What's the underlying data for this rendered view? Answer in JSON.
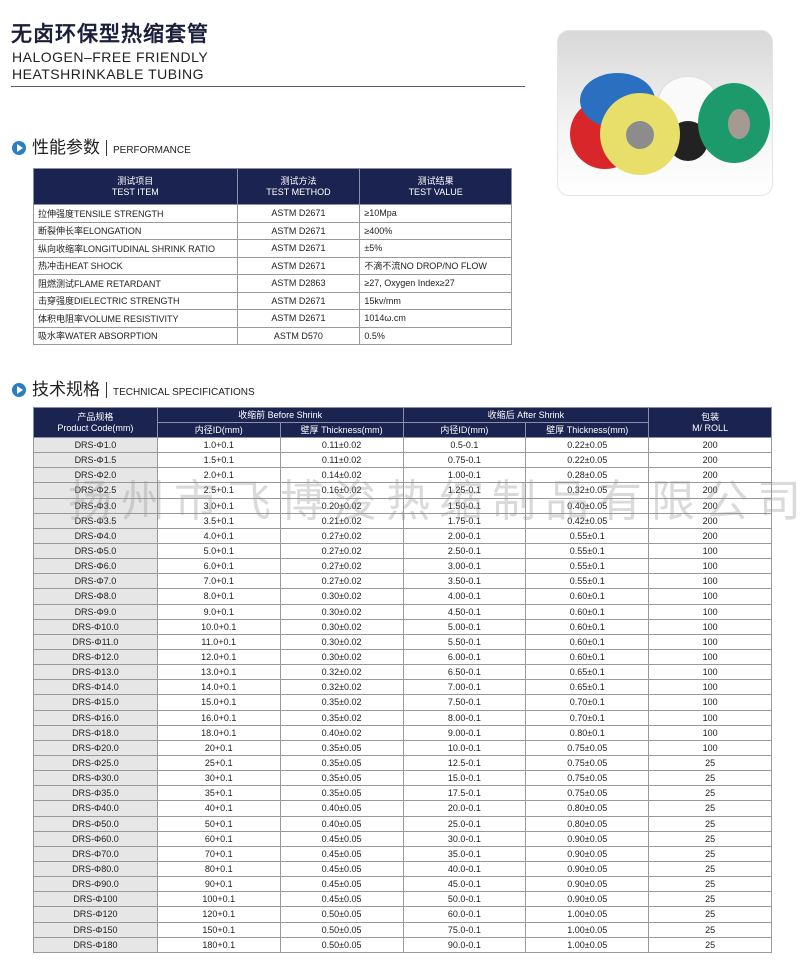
{
  "header": {
    "title_cn": "无卤环保型热缩套管",
    "title_en_1": "HALOGEN–FREE FRIENDLY",
    "title_en_2": "HEATSHRINKABLE TUBING"
  },
  "watermark": "扬州市飞博浚热缩制品有限公司",
  "performance": {
    "heading_cn": "性能参数",
    "heading_en": "PERFORMANCE",
    "columns": [
      {
        "cn": "测试项目",
        "en": "TEST ITEM"
      },
      {
        "cn": "测试方法",
        "en": "TEST METHOD"
      },
      {
        "cn": "测试结果",
        "en": "TEST VALUE"
      }
    ],
    "rows": [
      [
        "拉伸强度TENSILE STRENGTH",
        "ASTM D2671",
        "≥10Mpa"
      ],
      [
        "断裂伸长率ELONGATION",
        "ASTM D2671",
        "≥400%"
      ],
      [
        "纵向收缩率LONGITUDINAL SHRINK RATIO",
        "ASTM D2671",
        "±5%"
      ],
      [
        "热冲击HEAT SHOCK",
        "ASTM D2671",
        "不滴不流NO DROP/NO FLOW"
      ],
      [
        "阻燃测试FLAME RETARDANT",
        "ASTM D2863",
        "≥27, Oxygen Index≥27"
      ],
      [
        "击穿强度DIELECTRIC STRENGTH",
        "ASTM D2671",
        "15kv/mm"
      ],
      [
        "体积电阻率VOLUME RESISTIVITY",
        "ASTM D2671",
        "1014ω.cm"
      ],
      [
        "吸水率WATER ABSORPTION",
        "ASTM D570",
        "0.5%"
      ]
    ]
  },
  "specs": {
    "heading_cn": "技术规格",
    "heading_en": "TECHNICAL SPECIFICATIONS",
    "header": {
      "code_cn": "产品规格",
      "code_en": "Product Code(mm)",
      "before": "收缩前 Before Shrink",
      "after": "收缩后 After Shrink",
      "id": "内径ID(mm)",
      "thick": "壁厚 Thickness(mm)",
      "pack_cn": "包装",
      "pack_en": "M/ ROLL"
    },
    "rows": [
      [
        "DRS-Φ1.0",
        "1.0+0.1",
        "0.11±0.02",
        "0.5-0.1",
        "0.22±0.05",
        "200"
      ],
      [
        "DRS-Φ1.5",
        "1.5+0.1",
        "0.11±0.02",
        "0.75-0.1",
        "0.22±0.05",
        "200"
      ],
      [
        "DRS-Φ2.0",
        "2.0+0.1",
        "0.14±0.02",
        "1.00-0.1",
        "0.28±0.05",
        "200"
      ],
      [
        "DRS-Φ2.5",
        "2.5+0.1",
        "0.16±0.02",
        "1.25-0.1",
        "0.32±0.05",
        "200"
      ],
      [
        "DRS-Φ3.0",
        "3.0+0.1",
        "0.20±0.02",
        "1.50-0.1",
        "0.40±0.05",
        "200"
      ],
      [
        "DRS-Φ3.5",
        "3.5+0.1",
        "0.21±0.02",
        "1.75-0.1",
        "0.42±0.05",
        "200"
      ],
      [
        "DRS-Φ4.0",
        "4.0+0.1",
        "0.27±0.02",
        "2.00-0.1",
        "0.55±0.1",
        "200"
      ],
      [
        "DRS-Φ5.0",
        "5.0+0.1",
        "0.27±0.02",
        "2.50-0.1",
        "0.55±0.1",
        "100"
      ],
      [
        "DRS-Φ6.0",
        "6.0+0.1",
        "0.27±0.02",
        "3.00-0.1",
        "0.55±0.1",
        "100"
      ],
      [
        "DRS-Φ7.0",
        "7.0+0.1",
        "0.27±0.02",
        "3.50-0.1",
        "0.55±0.1",
        "100"
      ],
      [
        "DRS-Φ8.0",
        "8.0+0.1",
        "0.30±0.02",
        "4.00-0.1",
        "0.60±0.1",
        "100"
      ],
      [
        "DRS-Φ9.0",
        "9.0+0.1",
        "0.30±0.02",
        "4.50-0.1",
        "0.60±0.1",
        "100"
      ],
      [
        "DRS-Φ10.0",
        "10.0+0.1",
        "0.30±0.02",
        "5.00-0.1",
        "0.60±0.1",
        "100"
      ],
      [
        "DRS-Φ11.0",
        "11.0+0.1",
        "0.30±0.02",
        "5.50-0.1",
        "0.60±0.1",
        "100"
      ],
      [
        "DRS-Φ12.0",
        "12.0+0.1",
        "0.30±0.02",
        "6.00-0.1",
        "0.60±0.1",
        "100"
      ],
      [
        "DRS-Φ13.0",
        "13.0+0.1",
        "0.32±0.02",
        "6.50-0.1",
        "0.65±0.1",
        "100"
      ],
      [
        "DRS-Φ14.0",
        "14.0+0.1",
        "0.32±0.02",
        "7.00-0.1",
        "0.65±0.1",
        "100"
      ],
      [
        "DRS-Φ15.0",
        "15.0+0.1",
        "0.35±0.02",
        "7.50-0.1",
        "0.70±0.1",
        "100"
      ],
      [
        "DRS-Φ16.0",
        "16.0+0.1",
        "0.35±0.02",
        "8.00-0.1",
        "0.70±0.1",
        "100"
      ],
      [
        "DRS-Φ18.0",
        "18.0+0.1",
        "0.40±0.02",
        "9.00-0.1",
        "0.80±0.1",
        "100"
      ],
      [
        "DRS-Φ20.0",
        "20+0.1",
        "0.35±0.05",
        "10.0-0.1",
        "0.75±0.05",
        "100"
      ],
      [
        "DRS-Φ25.0",
        "25+0.1",
        "0.35±0.05",
        "12.5-0.1",
        "0.75±0.05",
        "25"
      ],
      [
        "DRS-Φ30.0",
        "30+0.1",
        "0.35±0.05",
        "15.0-0.1",
        "0.75±0.05",
        "25"
      ],
      [
        "DRS-Φ35.0",
        "35+0.1",
        "0.35±0.05",
        "17.5-0.1",
        "0.75±0.05",
        "25"
      ],
      [
        "DRS-Φ40.0",
        "40+0.1",
        "0.40±0.05",
        "20.0-0.1",
        "0.80±0.05",
        "25"
      ],
      [
        "DRS-Φ50.0",
        "50+0.1",
        "0.40±0.05",
        "25.0-0.1",
        "0.80±0.05",
        "25"
      ],
      [
        "DRS-Φ60.0",
        "60+0.1",
        "0.45±0.05",
        "30.0-0.1",
        "0.90±0.05",
        "25"
      ],
      [
        "DRS-Φ70.0",
        "70+0.1",
        "0.45±0.05",
        "35.0-0.1",
        "0.90±0.05",
        "25"
      ],
      [
        "DRS-Φ80.0",
        "80+0.1",
        "0.45±0.05",
        "40.0-0.1",
        "0.90±0.05",
        "25"
      ],
      [
        "DRS-Φ90.0",
        "90+0.1",
        "0.45±0.05",
        "45.0-0.1",
        "0.90±0.05",
        "25"
      ],
      [
        "DRS-Φ100",
        "100+0.1",
        "0.45±0.05",
        "50.0-0.1",
        "0.90±0.05",
        "25"
      ],
      [
        "DRS-Φ120",
        "120+0.1",
        "0.50±0.05",
        "60.0-0.1",
        "1.00±0.05",
        "25"
      ],
      [
        "DRS-Φ150",
        "150+0.1",
        "0.50±0.05",
        "75.0-0.1",
        "1.00±0.05",
        "25"
      ],
      [
        "DRS-Φ180",
        "180+0.1",
        "0.50±0.05",
        "90.0-0.1",
        "1.00±0.05",
        "25"
      ]
    ]
  },
  "colors": {
    "header_bg": "#1b2350",
    "code_cell_bg": "#e6e6e6",
    "bullet": "#2a7fc0"
  }
}
